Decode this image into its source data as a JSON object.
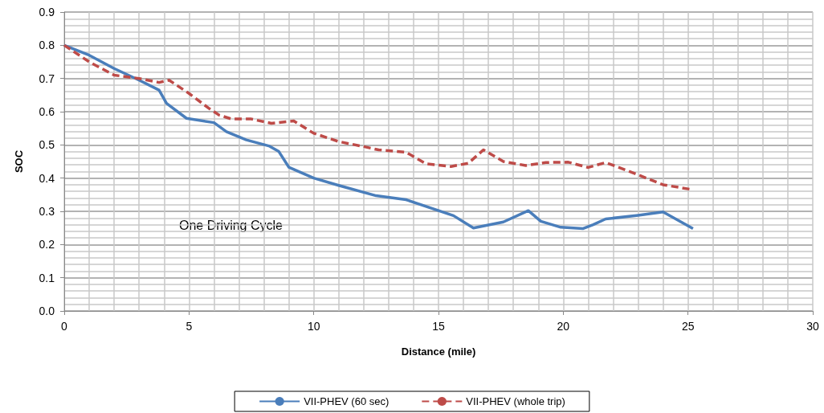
{
  "chart_data": {
    "type": "line",
    "xlabel": "Distance (mile)",
    "ylabel": "SOC",
    "annotations": [
      "One Driving Cycle"
    ],
    "xlim": [
      0,
      30
    ],
    "xticks": [
      0,
      5,
      10,
      15,
      20,
      25,
      30
    ],
    "ylim": [
      0,
      0.9
    ],
    "yticks": [
      {
        "value": 0,
        "label": "0.0"
      },
      {
        "value": 0.1,
        "label": "0.1"
      },
      {
        "value": 0.2,
        "label": "0.2"
      },
      {
        "value": 0.3,
        "label": "0.3"
      },
      {
        "value": 0.4,
        "label": "0.4"
      },
      {
        "value": 0.5,
        "label": "0.5"
      },
      {
        "value": 0.6,
        "label": "0.6"
      },
      {
        "value": 0.7,
        "label": "0.7"
      },
      {
        "value": 0.8,
        "label": "0.8"
      },
      {
        "value": 0.9,
        "label": "0.9"
      }
    ],
    "grid": true,
    "legend": "bottom",
    "marker": "none",
    "series": [
      {
        "name": "VII-PHEV (60 sec)",
        "color": "#4a7ebb",
        "line_style": "solid",
        "x": [
          0,
          1,
          2,
          3,
          3.8,
          4.1,
          4.9,
          6,
          6.5,
          7.3,
          8.2,
          8.6,
          9,
          10,
          11,
          12.5,
          13.7,
          15.6,
          16.4,
          17.6,
          18.6,
          19.1,
          19.9,
          20.8,
          21.2,
          21.7,
          23,
          24,
          25.2
        ],
        "values": [
          0.8,
          0.77,
          0.73,
          0.695,
          0.665,
          0.625,
          0.58,
          0.567,
          0.54,
          0.515,
          0.497,
          0.48,
          0.433,
          0.4,
          0.378,
          0.347,
          0.335,
          0.287,
          0.25,
          0.268,
          0.302,
          0.27,
          0.252,
          0.248,
          0.26,
          0.277,
          0.288,
          0.298,
          0.248
        ]
      },
      {
        "name": "VII-PHEV (whole trip)",
        "color": "#be4b48",
        "line_style": "dashed",
        "x": [
          0,
          1,
          2,
          3,
          3.8,
          4.2,
          5,
          5.8,
          6.2,
          6.7,
          7.5,
          8.3,
          9.2,
          10,
          11,
          12,
          12.6,
          13.7,
          14.5,
          15.5,
          16.2,
          16.8,
          17.6,
          18.5,
          19.3,
          20.2,
          21,
          21.7,
          23,
          24,
          25.2
        ],
        "values": [
          0.8,
          0.75,
          0.71,
          0.7,
          0.688,
          0.695,
          0.655,
          0.61,
          0.59,
          0.578,
          0.578,
          0.565,
          0.572,
          0.535,
          0.51,
          0.495,
          0.485,
          0.478,
          0.443,
          0.435,
          0.445,
          0.485,
          0.45,
          0.438,
          0.447,
          0.448,
          0.432,
          0.447,
          0.41,
          0.38,
          0.365
        ]
      }
    ]
  }
}
